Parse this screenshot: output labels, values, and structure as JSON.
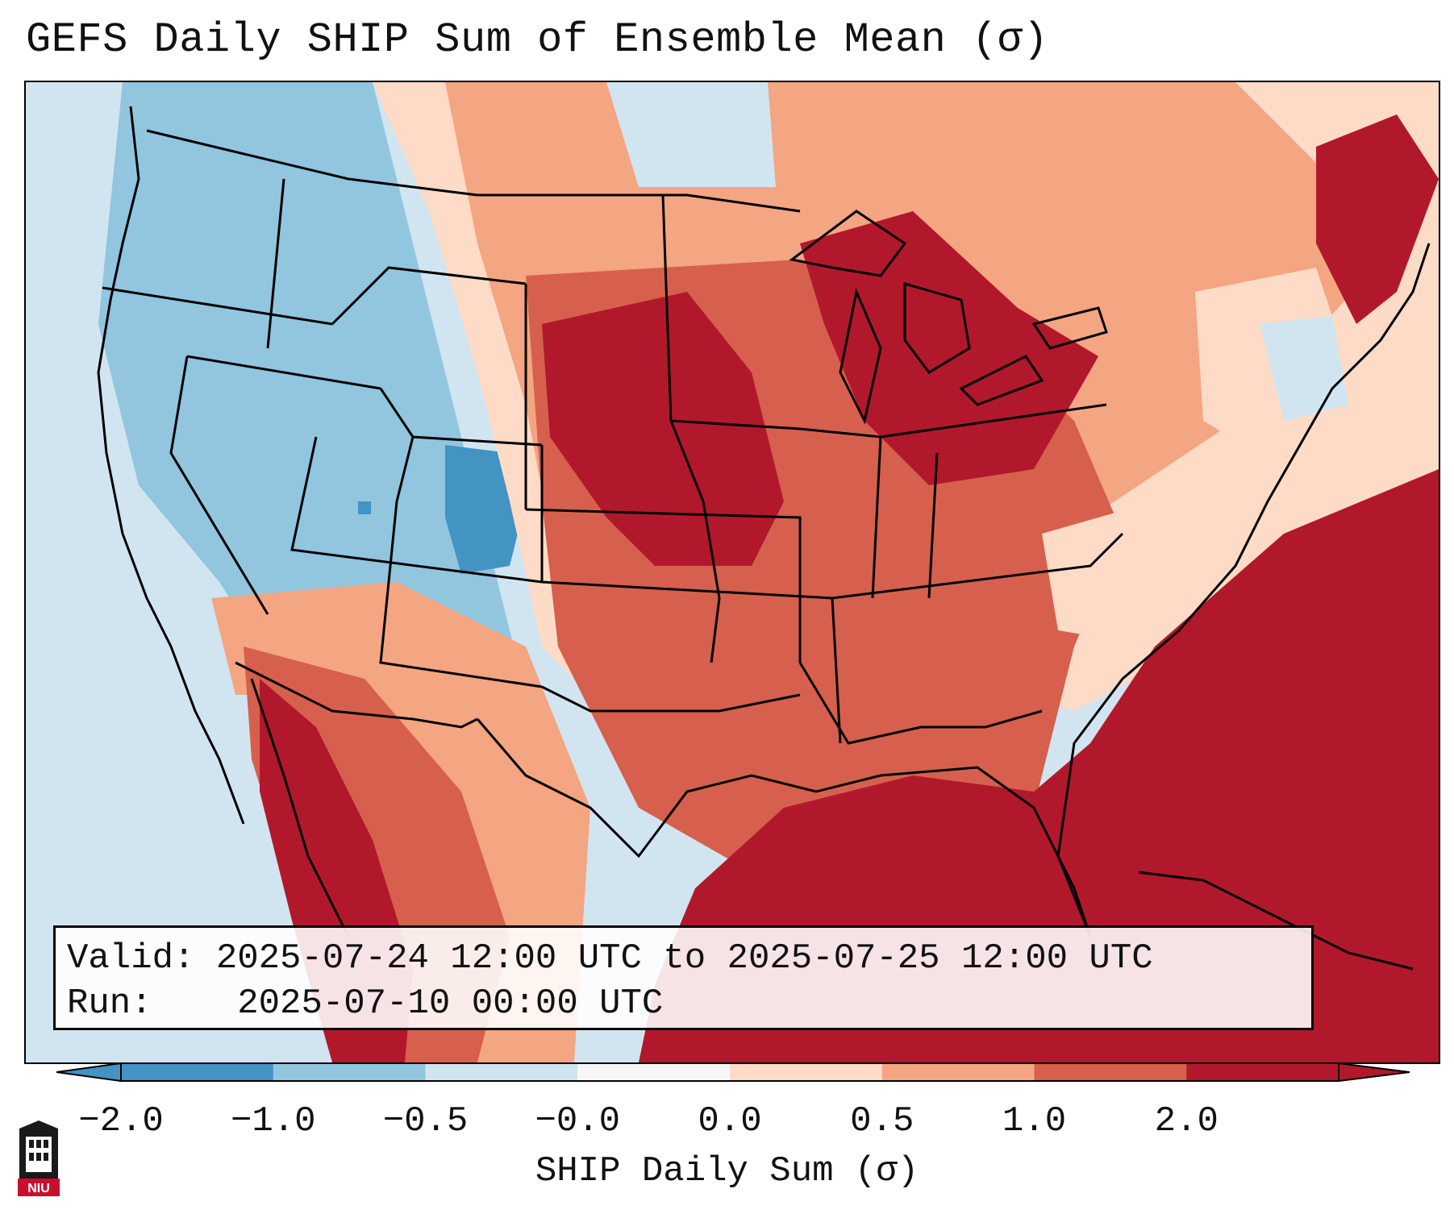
{
  "title": "GEFS Daily SHIP Sum of Ensemble Mean (σ)",
  "info": {
    "valid_label": "Valid:",
    "valid_value": "2025-07-24 12:00 UTC to 2025-07-25 12:00 UTC",
    "run_label": "Run:",
    "run_value": "2025-07-10 00:00 UTC"
  },
  "colorbar": {
    "label": "SHIP Daily Sum (σ)",
    "ticks": [
      "−2.0",
      "−1.0",
      "−0.5",
      "−0.0",
      "0.0",
      "0.5",
      "1.0",
      "2.0"
    ],
    "colors": [
      "#4393c3",
      "#92c5de",
      "#d1e5f0",
      "#f7f7f7",
      "#fddbc7",
      "#f4a582",
      "#d6604d",
      "#b2182b"
    ],
    "extend": "both"
  },
  "logo": {
    "text": "NIU"
  },
  "colors": {
    "strong_negative": "#4393c3",
    "moderate_negative": "#92c5de",
    "weak_negative": "#d1e5f0",
    "weak_positive": "#fddbc7",
    "moderate_positive": "#f4a582",
    "strong_positive": "#d6604d",
    "extreme_positive": "#b2182b"
  }
}
